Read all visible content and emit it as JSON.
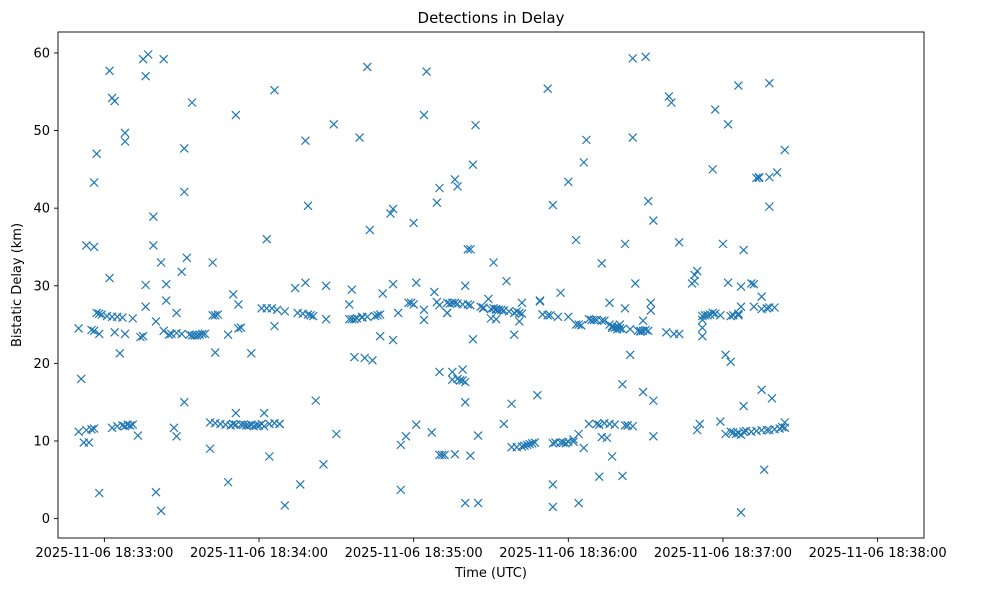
{
  "chart_data": {
    "type": "scatter",
    "title": "Detections in Delay",
    "xlabel": "Time (UTC)",
    "ylabel": "Bistatic Delay (km)",
    "marker": "x",
    "color": "#1f77b4",
    "x_units": "seconds after 2025-11-06 18:33:00 UTC",
    "xlim": [
      -18,
      318
    ],
    "ylim": [
      -2.5,
      62.7
    ],
    "x_ticks": [
      {
        "value": 0,
        "label": "2025-11-06 18:33:00"
      },
      {
        "value": 60,
        "label": "2025-11-06 18:34:00"
      },
      {
        "value": 120,
        "label": "2025-11-06 18:35:00"
      },
      {
        "value": 180,
        "label": "2025-11-06 18:36:00"
      },
      {
        "value": 240,
        "label": "2025-11-06 18:37:00"
      },
      {
        "value": 300,
        "label": "2025-11-06 18:38:00"
      }
    ],
    "y_ticks": [
      {
        "value": 0,
        "label": "0"
      },
      {
        "value": 10,
        "label": "10"
      },
      {
        "value": 20,
        "label": "20"
      },
      {
        "value": 30,
        "label": "30"
      },
      {
        "value": 40,
        "label": "40"
      },
      {
        "value": 50,
        "label": "50"
      },
      {
        "value": 60,
        "label": "60"
      }
    ],
    "points": [
      [
        -10,
        24.5
      ],
      [
        -10,
        11.2
      ],
      [
        -9,
        18
      ],
      [
        -8,
        9.8
      ],
      [
        -7,
        35.2
      ],
      [
        -7,
        11.4
      ],
      [
        -6,
        9.8
      ],
      [
        -5,
        24.3
      ],
      [
        -5,
        11.5
      ],
      [
        -4,
        24.2
      ],
      [
        -4,
        35
      ],
      [
        -4,
        43.3
      ],
      [
        -4,
        11.6
      ],
      [
        -3,
        47
      ],
      [
        -3,
        26.5
      ],
      [
        -2,
        26.4
      ],
      [
        -2,
        23.8
      ],
      [
        -1,
        26.3
      ],
      [
        -2,
        3.3
      ],
      [
        1,
        26.1
      ],
      [
        2,
        57.7
      ],
      [
        2,
        31
      ],
      [
        3,
        54.2
      ],
      [
        3,
        11.7
      ],
      [
        3,
        26
      ],
      [
        4,
        53.8
      ],
      [
        4,
        24
      ],
      [
        5,
        26
      ],
      [
        5,
        11.9
      ],
      [
        6,
        21.3
      ],
      [
        7,
        25.9
      ],
      [
        7,
        12
      ],
      [
        8,
        49.7
      ],
      [
        8,
        48.6
      ],
      [
        8,
        23.8
      ],
      [
        8,
        11.9
      ],
      [
        9,
        12.1
      ],
      [
        10,
        12
      ],
      [
        11,
        25.8
      ],
      [
        11,
        12.1
      ],
      [
        13,
        10.7
      ],
      [
        14,
        23.4
      ],
      [
        15,
        59.2
      ],
      [
        15,
        23.5
      ],
      [
        16,
        57
      ],
      [
        16,
        30.1
      ],
      [
        16,
        27.3
      ],
      [
        17,
        59.8
      ],
      [
        19,
        38.9
      ],
      [
        19,
        35.2
      ],
      [
        20,
        25.4
      ],
      [
        20,
        3.4
      ],
      [
        22,
        33
      ],
      [
        22,
        1
      ],
      [
        23,
        24.2
      ],
      [
        23,
        59.2
      ],
      [
        24,
        30.2
      ],
      [
        24,
        28.1
      ],
      [
        25,
        23.7
      ],
      [
        26,
        23.8
      ],
      [
        27,
        11.7
      ],
      [
        28,
        26.5
      ],
      [
        28,
        23.9
      ],
      [
        28,
        10.6
      ],
      [
        30,
        31.8
      ],
      [
        30,
        23.8
      ],
      [
        31,
        15
      ],
      [
        31,
        47.7
      ],
      [
        31,
        42.1
      ],
      [
        32,
        33.6
      ],
      [
        33,
        23.7
      ],
      [
        34,
        53.6
      ],
      [
        34,
        23.6
      ],
      [
        35,
        23.6
      ],
      [
        36,
        23.6
      ],
      [
        37,
        23.7
      ],
      [
        38,
        23.8
      ],
      [
        39,
        23.8
      ],
      [
        41,
        12.4
      ],
      [
        41,
        9
      ],
      [
        42,
        33
      ],
      [
        42,
        26.2
      ],
      [
        43,
        26.2
      ],
      [
        43,
        12.3
      ],
      [
        43,
        21.4
      ],
      [
        44,
        26.3
      ],
      [
        45,
        12.2
      ],
      [
        47,
        12.1
      ],
      [
        48,
        23.7
      ],
      [
        48,
        4.7
      ],
      [
        49,
        12
      ],
      [
        50,
        28.9
      ],
      [
        50,
        12.2
      ],
      [
        51,
        52
      ],
      [
        51,
        13.6
      ],
      [
        51,
        12.1
      ],
      [
        52,
        27.6
      ],
      [
        52,
        24.5
      ],
      [
        53,
        24.6
      ],
      [
        53,
        12.1
      ],
      [
        54,
        12.1
      ],
      [
        55,
        12
      ],
      [
        56,
        12
      ],
      [
        57,
        21.3
      ],
      [
        57,
        12.1
      ],
      [
        58,
        11.9
      ],
      [
        59,
        12
      ],
      [
        60,
        12
      ],
      [
        61,
        27.1
      ],
      [
        61,
        12.2
      ],
      [
        62,
        13.6
      ],
      [
        62,
        11.9
      ],
      [
        63,
        36
      ],
      [
        63,
        27.1
      ],
      [
        64,
        8
      ],
      [
        64,
        12.2
      ],
      [
        65,
        27.1
      ],
      [
        66,
        24.8
      ],
      [
        66,
        55.2
      ],
      [
        66,
        12.3
      ],
      [
        67,
        26.9
      ],
      [
        68,
        12.2
      ],
      [
        68,
        12.2
      ],
      [
        70,
        26.7
      ],
      [
        70,
        1.7
      ],
      [
        74,
        29.7
      ],
      [
        75,
        26.5
      ],
      [
        76,
        4.4
      ],
      [
        77,
        26.4
      ],
      [
        78,
        48.7
      ],
      [
        78,
        30.4
      ],
      [
        79,
        40.3
      ],
      [
        79,
        26.3
      ],
      [
        80,
        26.2
      ],
      [
        81,
        26.1
      ],
      [
        82,
        15.2
      ],
      [
        85,
        7
      ],
      [
        86,
        30
      ],
      [
        86,
        25.7
      ],
      [
        89,
        50.8
      ],
      [
        90,
        10.9
      ],
      [
        95,
        27.6
      ],
      [
        95,
        25.7
      ],
      [
        96,
        25.7
      ],
      [
        96,
        29.5
      ],
      [
        97,
        25.7
      ],
      [
        97,
        20.8
      ],
      [
        98,
        25.8
      ],
      [
        99,
        49.1
      ],
      [
        100,
        25.9
      ],
      [
        100,
        26
      ],
      [
        101,
        20.7
      ],
      [
        102,
        26
      ],
      [
        102,
        58.2
      ],
      [
        103,
        37.2
      ],
      [
        104,
        20.4
      ],
      [
        105,
        26.1
      ],
      [
        106,
        26.2
      ],
      [
        107,
        26.3
      ],
      [
        107,
        23.5
      ],
      [
        108,
        29
      ],
      [
        111,
        39.3
      ],
      [
        112,
        39.9
      ],
      [
        112,
        30.2
      ],
      [
        112,
        23
      ],
      [
        114,
        26.5
      ],
      [
        115,
        9.5
      ],
      [
        115,
        3.7
      ],
      [
        117,
        10.6
      ],
      [
        118,
        27.8
      ],
      [
        119,
        27.8
      ],
      [
        120,
        27.6
      ],
      [
        120,
        38.1
      ],
      [
        121,
        30.4
      ],
      [
        121,
        12.1
      ],
      [
        124,
        52
      ],
      [
        124,
        26.9
      ],
      [
        124,
        25.6
      ],
      [
        125,
        57.6
      ],
      [
        127,
        11.1
      ],
      [
        128,
        29.2
      ],
      [
        129,
        40.7
      ],
      [
        129,
        27.9
      ],
      [
        130,
        42.6
      ],
      [
        130,
        27.5
      ],
      [
        130,
        18.9
      ],
      [
        130,
        8.2
      ],
      [
        131,
        8.2
      ],
      [
        132,
        8.2
      ],
      [
        133,
        26.5
      ],
      [
        133,
        26.5
      ],
      [
        133,
        27.8
      ],
      [
        134,
        27.7
      ],
      [
        135,
        17.9
      ],
      [
        135,
        27.8
      ],
      [
        135,
        18.9
      ],
      [
        136,
        43.7
      ],
      [
        136,
        8.3
      ],
      [
        136,
        27.8
      ],
      [
        137,
        42.8
      ],
      [
        137,
        27.7
      ],
      [
        137,
        18
      ],
      [
        138,
        17.8
      ],
      [
        138,
        17.8
      ],
      [
        139,
        19.2
      ],
      [
        139,
        27.6
      ],
      [
        139,
        17.8
      ],
      [
        140,
        17.6
      ],
      [
        140,
        2
      ],
      [
        141,
        27.6
      ],
      [
        140,
        15
      ],
      [
        140,
        30
      ],
      [
        141,
        34.7
      ],
      [
        142,
        34.7
      ],
      [
        142,
        27.5
      ],
      [
        142,
        8.1
      ],
      [
        143,
        45.6
      ],
      [
        143,
        23.1
      ],
      [
        144,
        50.7
      ],
      [
        145,
        2
      ],
      [
        145,
        10.7
      ],
      [
        146,
        27.3
      ],
      [
        147,
        27.1
      ],
      [
        147,
        27.2
      ],
      [
        149,
        28.3
      ],
      [
        150,
        25.8
      ],
      [
        150,
        27
      ],
      [
        151,
        33
      ],
      [
        151,
        27.1
      ],
      [
        152,
        27
      ],
      [
        152,
        26.9
      ],
      [
        152,
        25.7
      ],
      [
        153,
        26.9
      ],
      [
        154,
        26.9
      ],
      [
        155,
        12.2
      ],
      [
        155,
        26.8
      ],
      [
        156,
        30.6
      ],
      [
        157,
        26.7
      ],
      [
        158,
        14.8
      ],
      [
        158,
        9.2
      ],
      [
        159,
        26.5
      ],
      [
        159,
        23.7
      ],
      [
        160,
        26.7
      ],
      [
        160,
        9.2
      ],
      [
        161,
        26.5
      ],
      [
        161,
        25.4
      ],
      [
        162,
        9.3
      ],
      [
        162,
        26.4
      ],
      [
        162,
        27.8
      ],
      [
        163,
        9.4
      ],
      [
        164,
        9.5
      ],
      [
        165,
        9.6
      ],
      [
        166,
        9.7
      ],
      [
        167,
        9.8
      ],
      [
        168,
        15.9
      ],
      [
        169,
        28.1
      ],
      [
        169,
        28
      ],
      [
        170,
        26.3
      ],
      [
        170,
        26.3
      ],
      [
        172,
        55.4
      ],
      [
        172,
        26.2
      ],
      [
        173,
        26.2
      ],
      [
        174,
        40.4
      ],
      [
        174,
        9.7
      ],
      [
        174,
        4.4
      ],
      [
        174,
        1.5
      ],
      [
        175,
        9.8
      ],
      [
        176,
        26
      ],
      [
        177,
        29.1
      ],
      [
        177,
        9.8
      ],
      [
        178,
        9.8
      ],
      [
        179,
        9.7
      ],
      [
        180,
        26
      ],
      [
        180,
        43.4
      ],
      [
        180,
        9.9
      ],
      [
        182,
        10.2
      ],
      [
        182,
        9.9
      ],
      [
        183,
        35.9
      ],
      [
        183,
        25
      ],
      [
        184,
        25
      ],
      [
        184,
        2
      ],
      [
        184,
        10.9
      ],
      [
        185,
        24.9
      ],
      [
        186,
        45.9
      ],
      [
        186,
        9.1
      ],
      [
        187,
        48.8
      ],
      [
        188,
        25.7
      ],
      [
        188,
        12.2
      ],
      [
        189,
        25.6
      ],
      [
        190,
        25.6
      ],
      [
        191,
        12.2
      ],
      [
        191,
        25.6
      ],
      [
        192,
        5.4
      ],
      [
        192,
        12.1
      ],
      [
        193,
        32.9
      ],
      [
        193,
        25.5
      ],
      [
        193,
        10.5
      ],
      [
        194,
        25.5
      ],
      [
        194,
        12.3
      ],
      [
        195,
        10.4
      ],
      [
        196,
        27.8
      ],
      [
        196,
        25
      ],
      [
        196,
        12.2
      ],
      [
        197,
        24.8
      ],
      [
        197,
        24.6
      ],
      [
        197,
        8
      ],
      [
        198,
        24.6
      ],
      [
        198,
        12.1
      ],
      [
        199,
        24.7
      ],
      [
        199,
        24.4
      ],
      [
        200,
        24.5
      ],
      [
        200,
        25
      ],
      [
        201,
        17.3
      ],
      [
        201,
        24.4
      ],
      [
        201,
        5.5
      ],
      [
        202,
        35.4
      ],
      [
        202,
        27.1
      ],
      [
        202,
        12
      ],
      [
        203,
        12
      ],
      [
        203,
        12
      ],
      [
        204,
        21.1
      ],
      [
        204,
        24.4
      ],
      [
        205,
        11.9
      ],
      [
        205,
        59.3
      ],
      [
        205,
        49.1
      ],
      [
        206,
        30.3
      ],
      [
        207,
        24.2
      ],
      [
        208,
        24.2
      ],
      [
        208,
        24.1
      ],
      [
        209,
        24.2
      ],
      [
        209,
        16.3
      ],
      [
        209,
        25.5
      ],
      [
        210,
        24.3
      ],
      [
        210,
        59.5
      ],
      [
        211,
        40.9
      ],
      [
        211,
        24.2
      ],
      [
        212,
        27.8
      ],
      [
        212,
        26.8
      ],
      [
        213,
        38.4
      ],
      [
        213,
        15.2
      ],
      [
        213,
        10.6
      ],
      [
        218,
        24
      ],
      [
        219,
        54.4
      ],
      [
        220,
        53.6
      ],
      [
        221,
        23.8
      ],
      [
        223,
        35.6
      ],
      [
        223,
        23.8
      ],
      [
        228,
        30.3
      ],
      [
        229,
        30.6
      ],
      [
        229,
        31.4
      ],
      [
        230,
        31.9
      ],
      [
        230,
        11.4
      ],
      [
        231,
        12.2
      ],
      [
        232,
        26.1
      ],
      [
        232,
        25.6
      ],
      [
        232,
        24.6
      ],
      [
        232,
        23.5
      ],
      [
        233,
        26.2
      ],
      [
        234,
        26.2
      ],
      [
        235,
        26.3
      ],
      [
        236,
        45
      ],
      [
        236,
        26.5
      ],
      [
        237,
        52.7
      ],
      [
        237,
        26.4
      ],
      [
        239,
        12.5
      ],
      [
        239,
        26.2
      ],
      [
        240,
        35.4
      ],
      [
        241,
        21.1
      ],
      [
        241,
        10.9
      ],
      [
        242,
        30.4
      ],
      [
        242,
        50.8
      ],
      [
        243,
        20.2
      ],
      [
        243,
        26.1
      ],
      [
        243,
        11.2
      ],
      [
        244,
        11.1
      ],
      [
        244,
        26.2
      ],
      [
        245,
        10.9
      ],
      [
        246,
        55.8
      ],
      [
        246,
        26.4
      ],
      [
        246,
        26.2
      ],
      [
        246,
        11
      ],
      [
        247,
        27.3
      ],
      [
        247,
        29.9
      ],
      [
        247,
        10.8
      ],
      [
        247,
        0.8
      ],
      [
        248,
        11.2
      ],
      [
        248,
        34.6
      ],
      [
        248,
        14.5
      ],
      [
        249,
        11.3
      ],
      [
        251,
        11.2
      ],
      [
        251,
        30.3
      ],
      [
        252,
        30.2
      ],
      [
        252,
        27.3
      ],
      [
        253,
        11.3
      ],
      [
        253,
        43.9
      ],
      [
        254,
        44
      ],
      [
        254,
        43.9
      ],
      [
        255,
        16.6
      ],
      [
        255,
        28.6
      ],
      [
        255,
        27
      ],
      [
        255,
        11.4
      ],
      [
        256,
        6.3
      ],
      [
        257,
        27.1
      ],
      [
        257,
        11.4
      ],
      [
        258,
        44
      ],
      [
        258,
        40.2
      ],
      [
        258,
        56.1
      ],
      [
        258,
        27.2
      ],
      [
        258,
        11.4
      ],
      [
        259,
        15.5
      ],
      [
        260,
        27.2
      ],
      [
        260,
        11.5
      ],
      [
        261,
        44.6
      ],
      [
        262,
        11.6
      ],
      [
        263,
        11.8
      ],
      [
        264,
        47.5
      ],
      [
        264,
        12.4
      ],
      [
        264,
        11.7
      ]
    ]
  }
}
